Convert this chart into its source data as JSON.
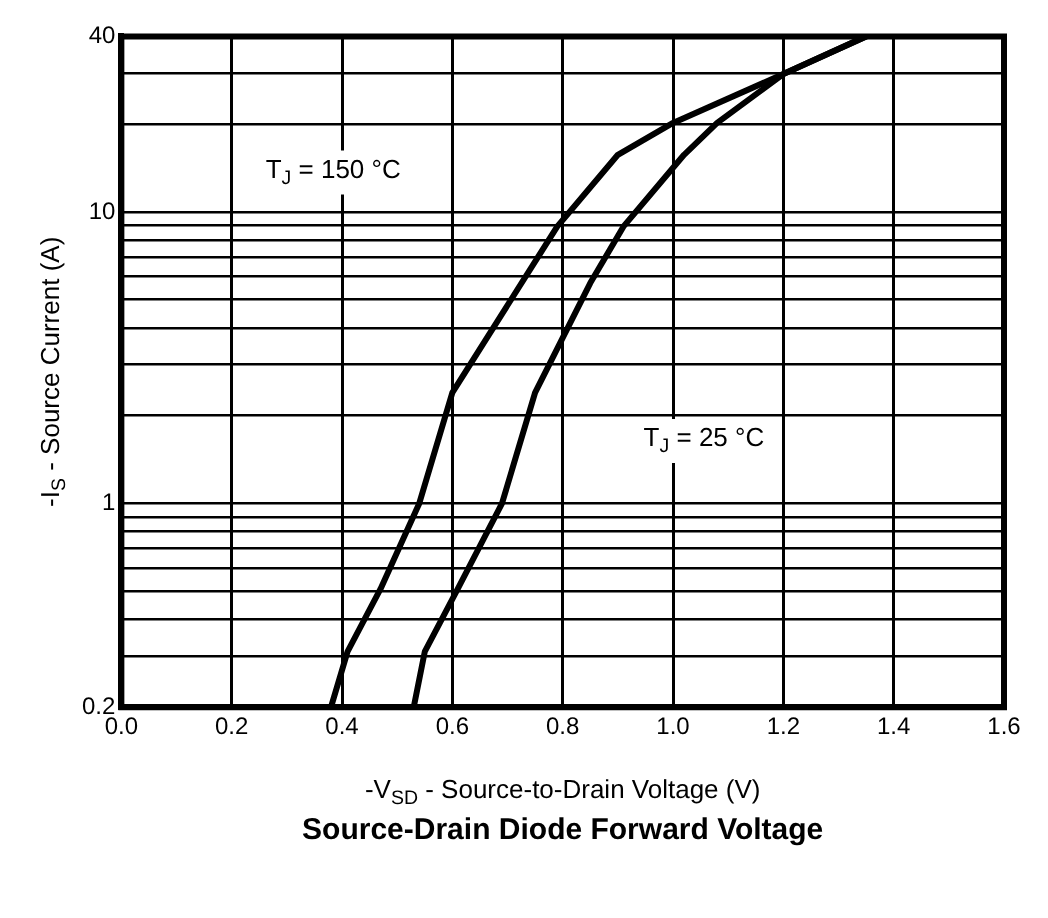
{
  "chart_data": {
    "type": "line",
    "title": "Source-Drain Diode Forward Voltage",
    "xlabel": "-V$_{SD}$ - Source-to-Drain Voltage (V)",
    "ylabel": "-I$_{S}$ - Source Current (A)",
    "series": [
      {
        "color": "#000000",
        "x": [
          0.38,
          0.41,
          0.47,
          0.54,
          0.6,
          0.79,
          0.9,
          1.0,
          1.2,
          1.35
        ],
        "values": [
          0.2,
          0.31,
          0.51,
          1,
          2.4,
          8.9,
          15.7,
          20.2,
          29.7,
          40
        ]
      },
      {
        "color": "#000000",
        "x": [
          0.53,
          0.55,
          0.61,
          0.69,
          0.75,
          0.85,
          0.91,
          1.02,
          1.08,
          1.2,
          1.35
        ],
        "values": [
          0.2,
          0.31,
          0.51,
          1,
          2.4,
          5.7,
          8.9,
          15.7,
          20.2,
          29.7,
          40
        ]
      }
    ],
    "annotations": [
      "T$_{J}$ = 150 °C",
      "T$_{J}$ = 25 °C"
    ],
    "xlim": [
      0,
      1.6
    ],
    "ylim": [
      0.2,
      40
    ],
    "log": "y",
    "xticks": [
      {
        "value": 0,
        "label": "0.0"
      },
      {
        "value": 0.2,
        "label": "0.2"
      },
      {
        "value": 0.4,
        "label": "0.4"
      },
      {
        "value": 0.6,
        "label": "0.6"
      },
      {
        "value": 0.8,
        "label": "0.8"
      },
      {
        "value": 1,
        "label": "1.0"
      },
      {
        "value": 1.2,
        "label": "1.2"
      },
      {
        "value": 1.4,
        "label": "1.4"
      },
      {
        "value": 1.6,
        "label": "1.6"
      }
    ],
    "yticks": [
      0.2,
      {
        "value": 0.3,
        "label": null
      },
      {
        "value": 0.4,
        "label": null
      },
      {
        "value": 0.5,
        "label": null
      },
      {
        "value": 0.6,
        "label": null
      },
      {
        "value": 0.7,
        "label": null
      },
      {
        "value": 0.8,
        "label": null
      },
      {
        "value": 0.9,
        "label": null
      },
      1,
      {
        "value": 2,
        "label": null
      },
      {
        "value": 3,
        "label": null
      },
      {
        "value": 4,
        "label": null
      },
      {
        "value": 5,
        "label": null
      },
      {
        "value": 6,
        "label": null
      },
      {
        "value": 7,
        "label": null
      },
      {
        "value": 8,
        "label": null
      },
      {
        "value": 9,
        "label": null
      },
      10,
      {
        "value": 20,
        "label": null
      },
      {
        "value": 30,
        "label": null
      },
      40
    ],
    "grid": true,
    "legend": false,
    "marker": "none",
    "line_style": "solid"
  }
}
